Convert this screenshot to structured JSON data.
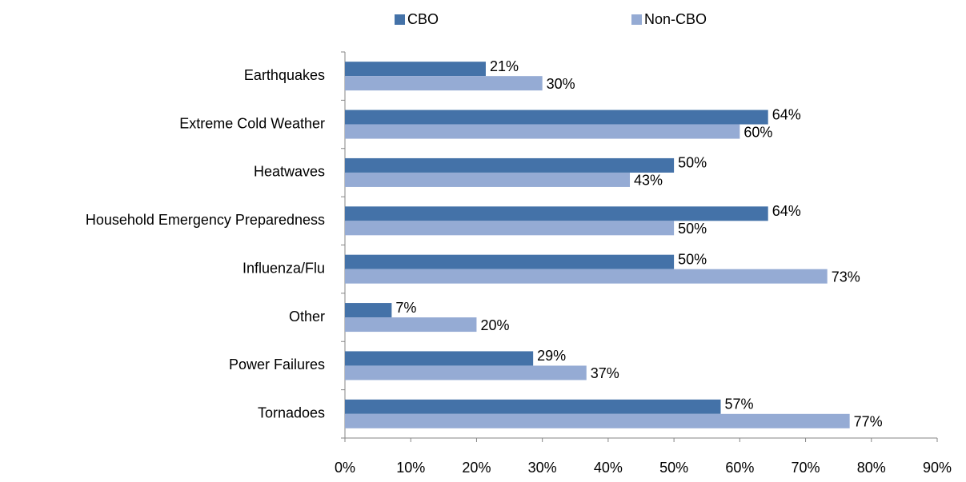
{
  "chart_data": {
    "type": "bar",
    "orientation": "horizontal",
    "categories": [
      "Earthquakes",
      "Extreme Cold Weather",
      "Heatwaves",
      "Household Emergency Preparedness",
      "Influenza/Flu",
      "Other",
      "Power Failures",
      "Tornadoes"
    ],
    "series": [
      {
        "name": "CBO",
        "color": "#4472a8",
        "values": [
          21.4,
          64.3,
          50,
          64.3,
          50,
          7.1,
          28.6,
          57.1
        ],
        "value_labels": [
          "21%",
          "64%",
          "50%",
          "64%",
          "50%",
          "7%",
          "29%",
          "57%"
        ]
      },
      {
        "name": "Non-CBO",
        "color": "#95abd4",
        "values": [
          30,
          60,
          43.3,
          50,
          73.3,
          20,
          36.7,
          76.7
        ],
        "value_labels": [
          "30%",
          "60%",
          "43%",
          "50%",
          "73%",
          "20%",
          "37%",
          "77%"
        ]
      }
    ],
    "xlim": [
      0,
      90
    ],
    "xticks": [
      {
        "value": 0,
        "label": "0%"
      },
      {
        "value": 10,
        "label": "10%"
      },
      {
        "value": 20,
        "label": "20%"
      },
      {
        "value": 30,
        "label": "30%"
      },
      {
        "value": 40,
        "label": "40%"
      },
      {
        "value": 50,
        "label": "50%"
      },
      {
        "value": 60,
        "label": "60%"
      },
      {
        "value": 70,
        "label": "70%"
      },
      {
        "value": 80,
        "label": "80%"
      },
      {
        "value": 90,
        "label": "90%"
      }
    ],
    "legend": "top",
    "grid": false
  }
}
